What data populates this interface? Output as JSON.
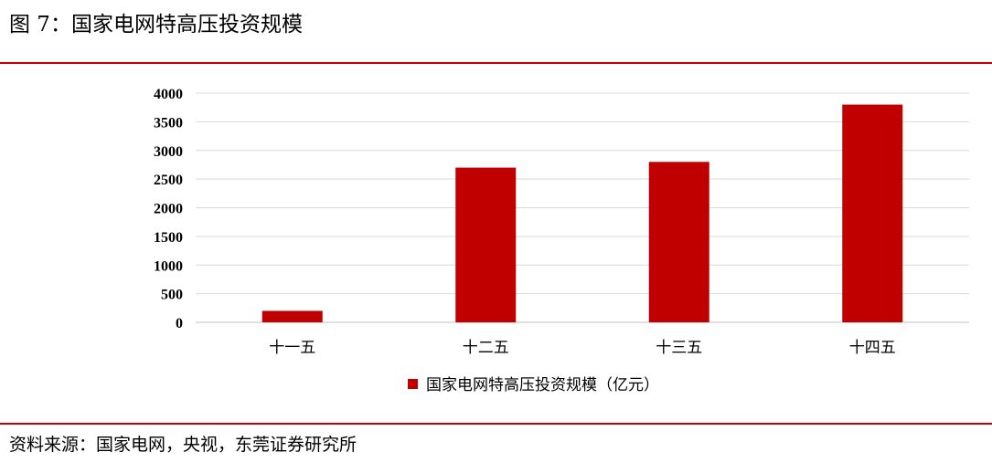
{
  "figure": {
    "title": "图 7：国家电网特高压投资规模",
    "source": "资料来源：国家电网，央视，东莞证券研究所"
  },
  "chart_data": {
    "type": "bar",
    "categories": [
      "十一五",
      "十二五",
      "十三五",
      "十四五"
    ],
    "series": [
      {
        "name": "国家电网特高压投资规模（亿元）",
        "values": [
          200,
          2700,
          2800,
          3800
        ],
        "color": "#c00000"
      }
    ],
    "ylim": [
      0,
      4000
    ],
    "yticks": [
      0,
      500,
      1000,
      1500,
      2000,
      2500,
      3000,
      3500,
      4000
    ],
    "grid": true,
    "legend_position": "bottom",
    "xlabel": "",
    "ylabel": ""
  },
  "colors": {
    "accent": "#c00000",
    "grid": "#d9d9d9",
    "axis": "#bfbfbf"
  }
}
